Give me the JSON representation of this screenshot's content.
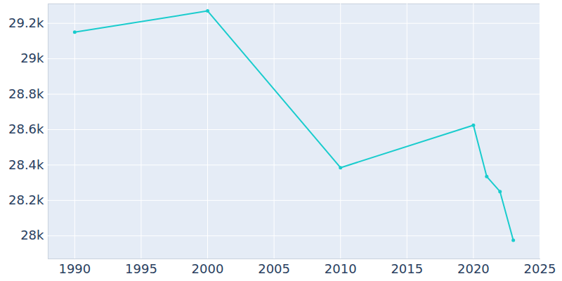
{
  "chart_data": {
    "type": "line",
    "x": [
      1990,
      2000,
      2010,
      2020,
      2021,
      2022,
      2023
    ],
    "values": [
      29150,
      29270,
      28385,
      28625,
      28335,
      28250,
      27975
    ],
    "color": "#19cccd",
    "marker": "circle",
    "grid": true,
    "xlim": [
      1988,
      2025
    ],
    "xticks": [
      1990,
      1995,
      2000,
      2005,
      2010,
      2015,
      2020,
      2025
    ],
    "ylim": [
      27870,
      29310
    ],
    "yticks": [
      {
        "value": 28000,
        "label": "28k"
      },
      {
        "value": 28200,
        "label": "28.2k"
      },
      {
        "value": 28400,
        "label": "28.4k"
      },
      {
        "value": 28600,
        "label": "28.6k"
      },
      {
        "value": 28800,
        "label": "28.8k"
      },
      {
        "value": 29000,
        "label": "29k"
      },
      {
        "value": 29200,
        "label": "29.2k"
      }
    ]
  }
}
